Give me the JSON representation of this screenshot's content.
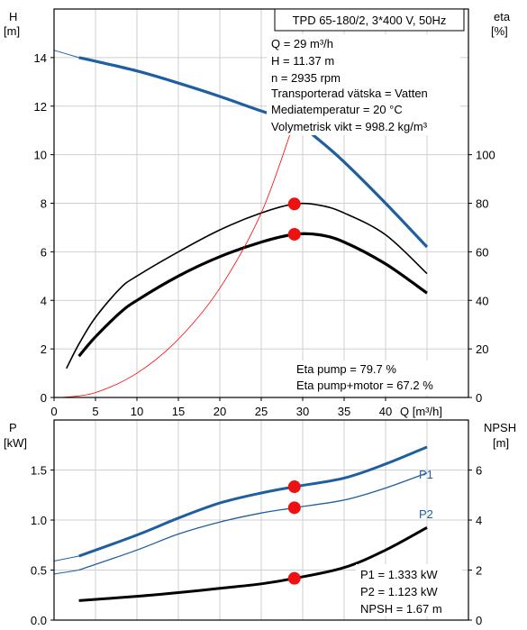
{
  "chart_data": [
    {
      "type": "line",
      "title": "TPD 65-180/2, 3*400 V, 50Hz",
      "y_left_label": "H",
      "y_left_unit": "[m]",
      "y_right_label": "eta",
      "y_right_unit": "[%]",
      "xlabel": "Q [m³/h]",
      "xlim": [
        0,
        50
      ],
      "ylim_left": [
        0,
        16
      ],
      "ylim_right": [
        0,
        160
      ],
      "x_ticks": [
        0,
        5,
        10,
        15,
        20,
        25,
        30,
        35,
        40
      ],
      "y_left_ticks": [
        0,
        2,
        4,
        6,
        8,
        10,
        12,
        14
      ],
      "y_right_ticks": [
        0,
        20,
        40,
        60,
        80,
        100
      ],
      "grid": true,
      "info_lines": [
        "Q = 29 m³/h",
        "H = 11.37 m",
        "n = 2935 rpm",
        "Transporterad vätska = Vatten",
        "Mediatemperatur = 20 °C",
        "Volymetrisk vikt = 998.2 kg/m³"
      ],
      "result_lines": [
        "Eta pump = 79.7 %",
        "Eta pump+motor = 67.2 %"
      ],
      "series": [
        {
          "id": "head",
          "axis": "left",
          "color": "#1f5fa0",
          "x": [
            3,
            5,
            10,
            15,
            20,
            25,
            29,
            32,
            35,
            40,
            45
          ],
          "y": [
            14.0,
            13.85,
            13.45,
            12.95,
            12.4,
            11.8,
            11.37,
            10.6,
            9.7,
            8.0,
            6.2
          ]
        },
        {
          "id": "head-extension",
          "axis": "left",
          "color": "#1f5fa0",
          "x": [
            0,
            3
          ],
          "y": [
            14.3,
            14.0
          ]
        },
        {
          "id": "eta-pump",
          "axis": "right",
          "color": "#000000",
          "x": [
            1.5,
            3,
            5,
            8,
            10,
            15,
            20,
            25,
            29,
            32,
            35,
            40,
            45
          ],
          "y": [
            12,
            22,
            33,
            45,
            50,
            60,
            69,
            76,
            79.7,
            79.2,
            76,
            67,
            51
          ]
        },
        {
          "id": "eta-pump-motor",
          "axis": "right",
          "color": "#000000",
          "x": [
            3,
            5,
            8,
            10,
            15,
            20,
            25,
            29,
            32,
            35,
            40,
            45
          ],
          "y": [
            17,
            25,
            35,
            40,
            50,
            58,
            64,
            67.2,
            67,
            64,
            55,
            43
          ]
        },
        {
          "id": "system-curve",
          "axis": "right",
          "color": "#ff0000",
          "x": [
            1,
            5,
            10,
            15,
            20,
            25,
            29
          ],
          "y": [
            0,
            2,
            10,
            24,
            45,
            76,
            113.7
          ]
        }
      ],
      "markers": [
        {
          "axis": "left",
          "x": 29,
          "y": 11.37,
          "style": "yellow"
        },
        {
          "axis": "right",
          "x": 29,
          "y": 79.7,
          "style": "red"
        },
        {
          "axis": "right",
          "x": 29,
          "y": 67.2,
          "style": "red"
        }
      ]
    },
    {
      "type": "line",
      "y_left_label": "P",
      "y_left_unit": "[kW]",
      "y_right_label": "NPSH",
      "y_right_unit": "[m]",
      "xlim": [
        0,
        50
      ],
      "ylim_left": [
        0,
        2.0
      ],
      "ylim_right": [
        0,
        8
      ],
      "y_left_ticks": [
        0.0,
        0.5,
        1.0,
        1.5
      ],
      "y_left_tick_labels": [
        "0.0",
        "0.5",
        "1.0",
        "1.5"
      ],
      "y_right_ticks": [
        0,
        2,
        4,
        6
      ],
      "grid": true,
      "result_lines": [
        "P1 = 1.333 kW",
        "P2 = 1.123 kW",
        "NPSH = 1.67 m"
      ],
      "series": [
        {
          "id": "P1",
          "name": "P1",
          "axis": "left",
          "color": "#1f5fa0",
          "width": 3,
          "x": [
            3,
            10,
            15,
            20,
            25,
            29,
            35,
            40,
            45
          ],
          "y": [
            0.64,
            0.85,
            1.02,
            1.17,
            1.27,
            1.333,
            1.42,
            1.56,
            1.73
          ]
        },
        {
          "id": "P1-extension",
          "axis": "left",
          "color": "#1f5fa0",
          "width": 1,
          "x": [
            0,
            3
          ],
          "y": [
            0.59,
            0.64
          ]
        },
        {
          "id": "P2",
          "name": "P2",
          "axis": "left",
          "color": "#1f5fa0",
          "width": 1.3,
          "x": [
            3,
            10,
            15,
            20,
            25,
            29,
            35,
            40,
            45
          ],
          "y": [
            0.5,
            0.7,
            0.86,
            0.98,
            1.07,
            1.123,
            1.2,
            1.32,
            1.47
          ]
        },
        {
          "id": "P2-extension",
          "axis": "left",
          "color": "#1f5fa0",
          "width": 1,
          "x": [
            0,
            3
          ],
          "y": [
            0.46,
            0.5
          ]
        },
        {
          "id": "NPSH",
          "axis": "right",
          "color": "#000000",
          "width": 3,
          "x": [
            3,
            10,
            15,
            20,
            25,
            29,
            35,
            40,
            45
          ],
          "y": [
            0.78,
            0.95,
            1.1,
            1.27,
            1.45,
            1.67,
            2.1,
            2.8,
            3.7
          ]
        }
      ],
      "markers": [
        {
          "axis": "left",
          "x": 29,
          "y": 1.333,
          "style": "red"
        },
        {
          "axis": "left",
          "x": 29,
          "y": 1.123,
          "style": "red"
        },
        {
          "axis": "right",
          "x": 29,
          "y": 1.67,
          "style": "red"
        }
      ]
    }
  ]
}
